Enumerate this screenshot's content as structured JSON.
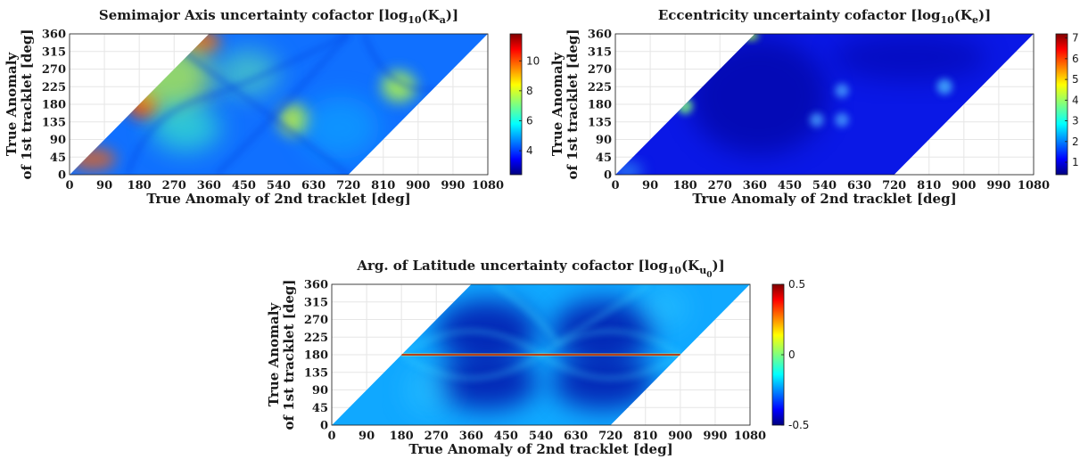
{
  "chart_data": [
    {
      "type": "heatmap",
      "title": {
        "main": "Semimajor Axis uncertainty cofactor [log",
        "sub": "10",
        "mid": "(K",
        "sub2": "a",
        "end": ")]"
      },
      "xlabel": "True Anomaly of 2nd tracklet [deg]",
      "ylabel": [
        "True Anomaly",
        "of 1st tracklet [deg]"
      ],
      "xlim": [
        0,
        1080
      ],
      "ylim": [
        0,
        360
      ],
      "xticks": [
        "0",
        "90",
        "180",
        "270",
        "360",
        "450",
        "540",
        "630",
        "720",
        "810",
        "900",
        "990",
        "1080"
      ],
      "yticks": [
        "0",
        "45",
        "90",
        "135",
        "180",
        "225",
        "270",
        "315",
        "360"
      ],
      "colorbar": {
        "range": [
          2.4,
          11.8
        ],
        "ticks": [
          "4",
          "6",
          "8",
          "10"
        ],
        "tick_values": [
          4,
          6,
          8,
          10
        ]
      },
      "domain": "y <= x <= y + 720",
      "colormap": "jet",
      "grid": true
    },
    {
      "type": "heatmap",
      "title": {
        "main": "Eccentricity uncertainty cofactor [log",
        "sub": "10",
        "mid": "(K",
        "sub2": "e",
        "end": ")]"
      },
      "xlabel": "True Anomaly of 2nd tracklet [deg]",
      "ylabel": [
        "True Anomaly",
        "of 1st tracklet [deg]"
      ],
      "xlim": [
        0,
        1080
      ],
      "ylim": [
        0,
        360
      ],
      "xticks": [
        "0",
        "90",
        "180",
        "270",
        "360",
        "450",
        "540",
        "630",
        "720",
        "810",
        "900",
        "990",
        "1080"
      ],
      "yticks": [
        "0",
        "45",
        "90",
        "135",
        "180",
        "225",
        "270",
        "315",
        "360"
      ],
      "colorbar": {
        "range": [
          0.4,
          7.2
        ],
        "ticks": [
          "1",
          "2",
          "3",
          "4",
          "5",
          "6",
          "7"
        ],
        "tick_values": [
          1,
          2,
          3,
          4,
          5,
          6,
          7
        ]
      },
      "domain": "y <= x <= y + 720",
      "colormap": "jet",
      "grid": true
    },
    {
      "type": "heatmap",
      "title": {
        "main": "Arg. of Latitude uncertainty cofactor [log",
        "sub": "10",
        "mid": "(K",
        "sub2": "u",
        "sub3": "0",
        "end": ")]"
      },
      "xlabel": "True Anomaly of 2nd tracklet [deg]",
      "ylabel": [
        "True Anomaly",
        "of 1st tracklet [deg]"
      ],
      "xlim": [
        0,
        1080
      ],
      "ylim": [
        0,
        360
      ],
      "xticks": [
        "0",
        "90",
        "180",
        "270",
        "360",
        "450",
        "540",
        "630",
        "720",
        "810",
        "900",
        "990",
        "1080"
      ],
      "yticks": [
        "0",
        "45",
        "90",
        "135",
        "180",
        "225",
        "270",
        "315",
        "360"
      ],
      "colorbar": {
        "range": [
          -0.5,
          0.5
        ],
        "ticks": [
          "-0.5",
          "0",
          "0.5"
        ],
        "tick_values": [
          -0.5,
          0,
          0.5
        ]
      },
      "domain": "y + 360 <= x + 360 <= y + 1080 ; x >= y - 0 ; band y + 0 <= x <= y + 720",
      "colormap": "jet",
      "grid": true
    }
  ]
}
